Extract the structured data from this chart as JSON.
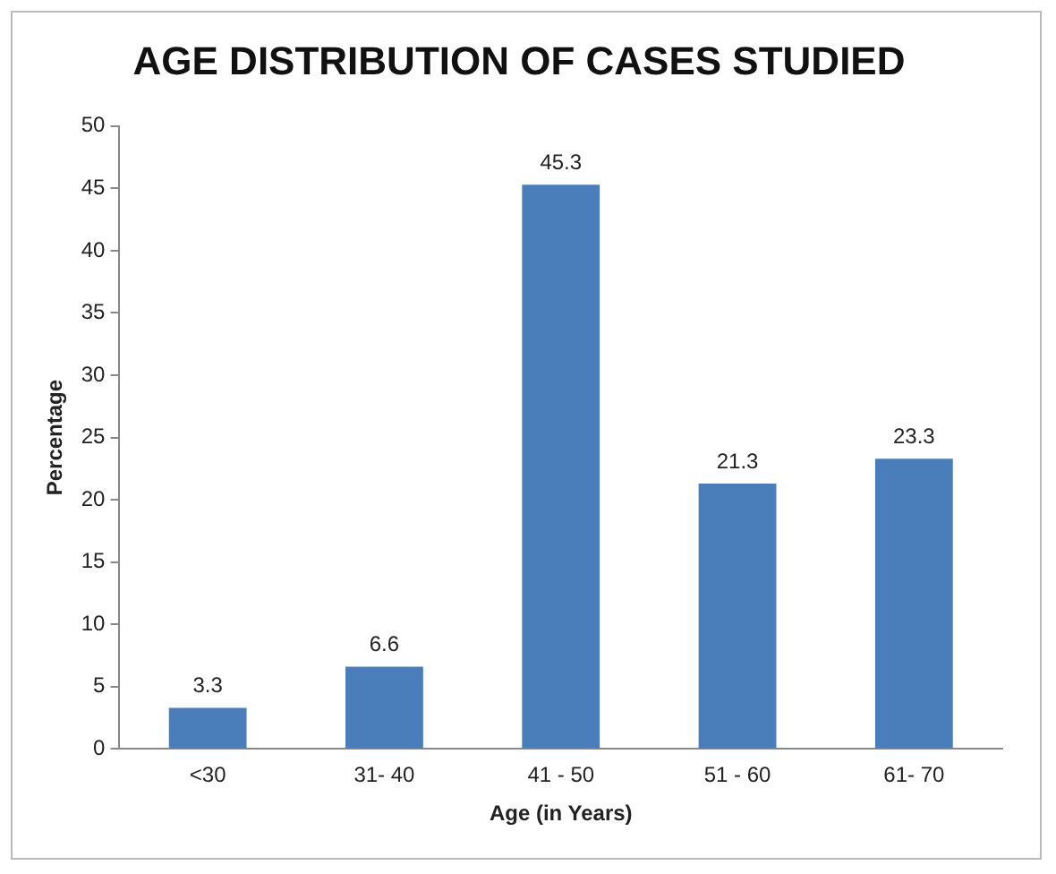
{
  "chart_data": {
    "type": "bar",
    "title": "AGE DISTRIBUTION OF CASES STUDIED",
    "xlabel": "Age (in Years)",
    "ylabel": "Percentage",
    "categories": [
      "<30",
      "31- 40",
      "41 - 50",
      "51 - 60",
      "61- 70"
    ],
    "values": [
      3.3,
      6.6,
      45.3,
      21.3,
      23.3
    ],
    "color": "#4a7ebb",
    "ylim": [
      0,
      50
    ],
    "yticks": [
      0,
      5,
      10,
      15,
      20,
      25,
      30,
      35,
      40,
      45,
      50
    ],
    "grid": false,
    "legend": false,
    "data_labels": true
  }
}
